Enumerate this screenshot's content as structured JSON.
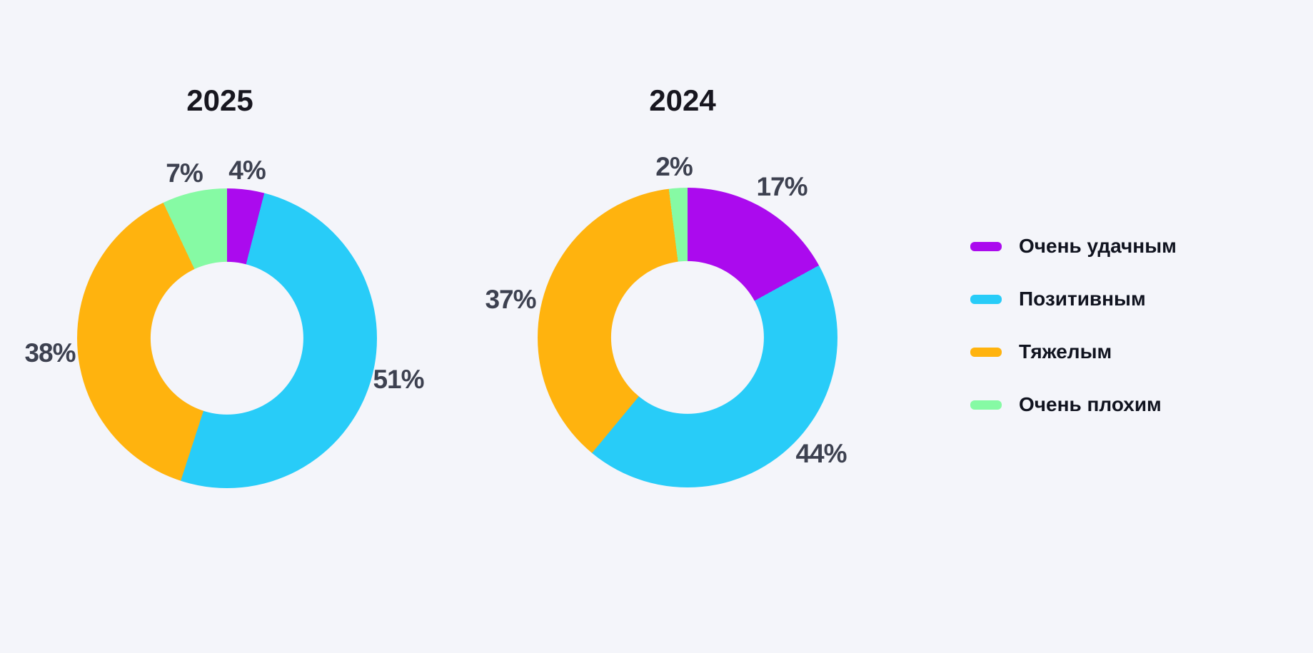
{
  "background_color": "#F4F5FA",
  "text_colors": {
    "title": "#17161F",
    "percent_label": "#3D4150",
    "legend_label": "#10131F"
  },
  "chart_data": [
    {
      "type": "pie",
      "subtype": "donut",
      "title": "2025",
      "categories": [
        "Очень удачным",
        "Позитивным",
        "Тяжелым",
        "Очень плохим"
      ],
      "values": [
        4,
        51,
        38,
        7
      ],
      "slice_labels": [
        "4%",
        "51%",
        "38%",
        "7%"
      ],
      "colors": [
        "#AB0AEE",
        "#28CCF8",
        "#FFB30E",
        "#86FAA4"
      ],
      "start_angle_deg": 0,
      "direction": "clockwise",
      "donut_hole_pct": 51,
      "legend_position": "right"
    },
    {
      "type": "pie",
      "subtype": "donut",
      "title": "2024",
      "categories": [
        "Очень удачным",
        "Позитивным",
        "Тяжелым",
        "Очень плохим"
      ],
      "values": [
        17,
        44,
        37,
        2
      ],
      "slice_labels": [
        "17%",
        "44%",
        "37%",
        "2%"
      ],
      "colors": [
        "#AB0AEE",
        "#28CCF8",
        "#FFB30E",
        "#86FAA4"
      ],
      "start_angle_deg": 0,
      "direction": "clockwise",
      "donut_hole_pct": 51,
      "legend_position": "right"
    }
  ],
  "legend": {
    "items": [
      {
        "label": "Очень удачным",
        "color": "#AB0AEE"
      },
      {
        "label": "Позитивным",
        "color": "#28CCF8"
      },
      {
        "label": "Тяжелым",
        "color": "#FFB30E"
      },
      {
        "label": "Очень плохим",
        "color": "#86FAA4"
      }
    ]
  }
}
